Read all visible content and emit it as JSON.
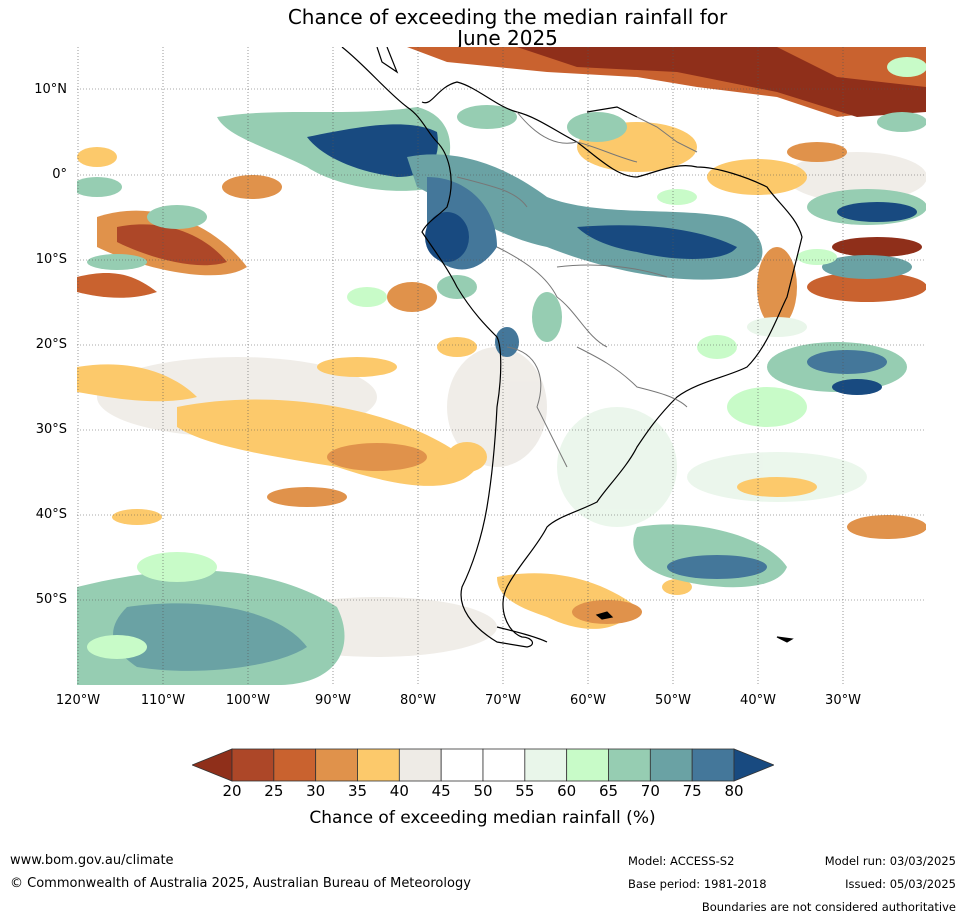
{
  "title_line1": "Chance of exceeding the median rainfall for",
  "title_line2": "June 2025",
  "lat_labels": [
    "10°N",
    "0°",
    "10°S",
    "20°S",
    "30°S",
    "40°S",
    "50°S"
  ],
  "lon_labels": [
    "120°W",
    "110°W",
    "100°W",
    "90°W",
    "80°W",
    "70°W",
    "60°W",
    "50°W",
    "40°W",
    "30°W"
  ],
  "colorbar": {
    "ticks": [
      "20",
      "25",
      "30",
      "35",
      "40",
      "45",
      "50",
      "55",
      "60",
      "65",
      "70",
      "75",
      "80"
    ],
    "colors": [
      "#8f2f1a",
      "#ad4728",
      "#c9622f",
      "#e0924b",
      "#fcc96b",
      "#eeebe6",
      "#ffffff",
      "#ffffff",
      "#e9f6ea",
      "#c8fbc8",
      "#96cdb2",
      "#6aa2a4",
      "#44779a",
      "#184a80"
    ],
    "label": "Chance of exceeding median rainfall (%)"
  },
  "footer": {
    "website": "www.bom.gov.au/climate",
    "copyright": "© Commonwealth of Australia 2025, Australian Bureau of Meteorology",
    "model": "Model: ACCESS-S2",
    "base_period": "Base period: 1981-2018",
    "model_run": "Model run: 03/03/2025",
    "issued": "Issued: 05/03/2025",
    "disclaimer": "Boundaries are not considered authoritative"
  }
}
